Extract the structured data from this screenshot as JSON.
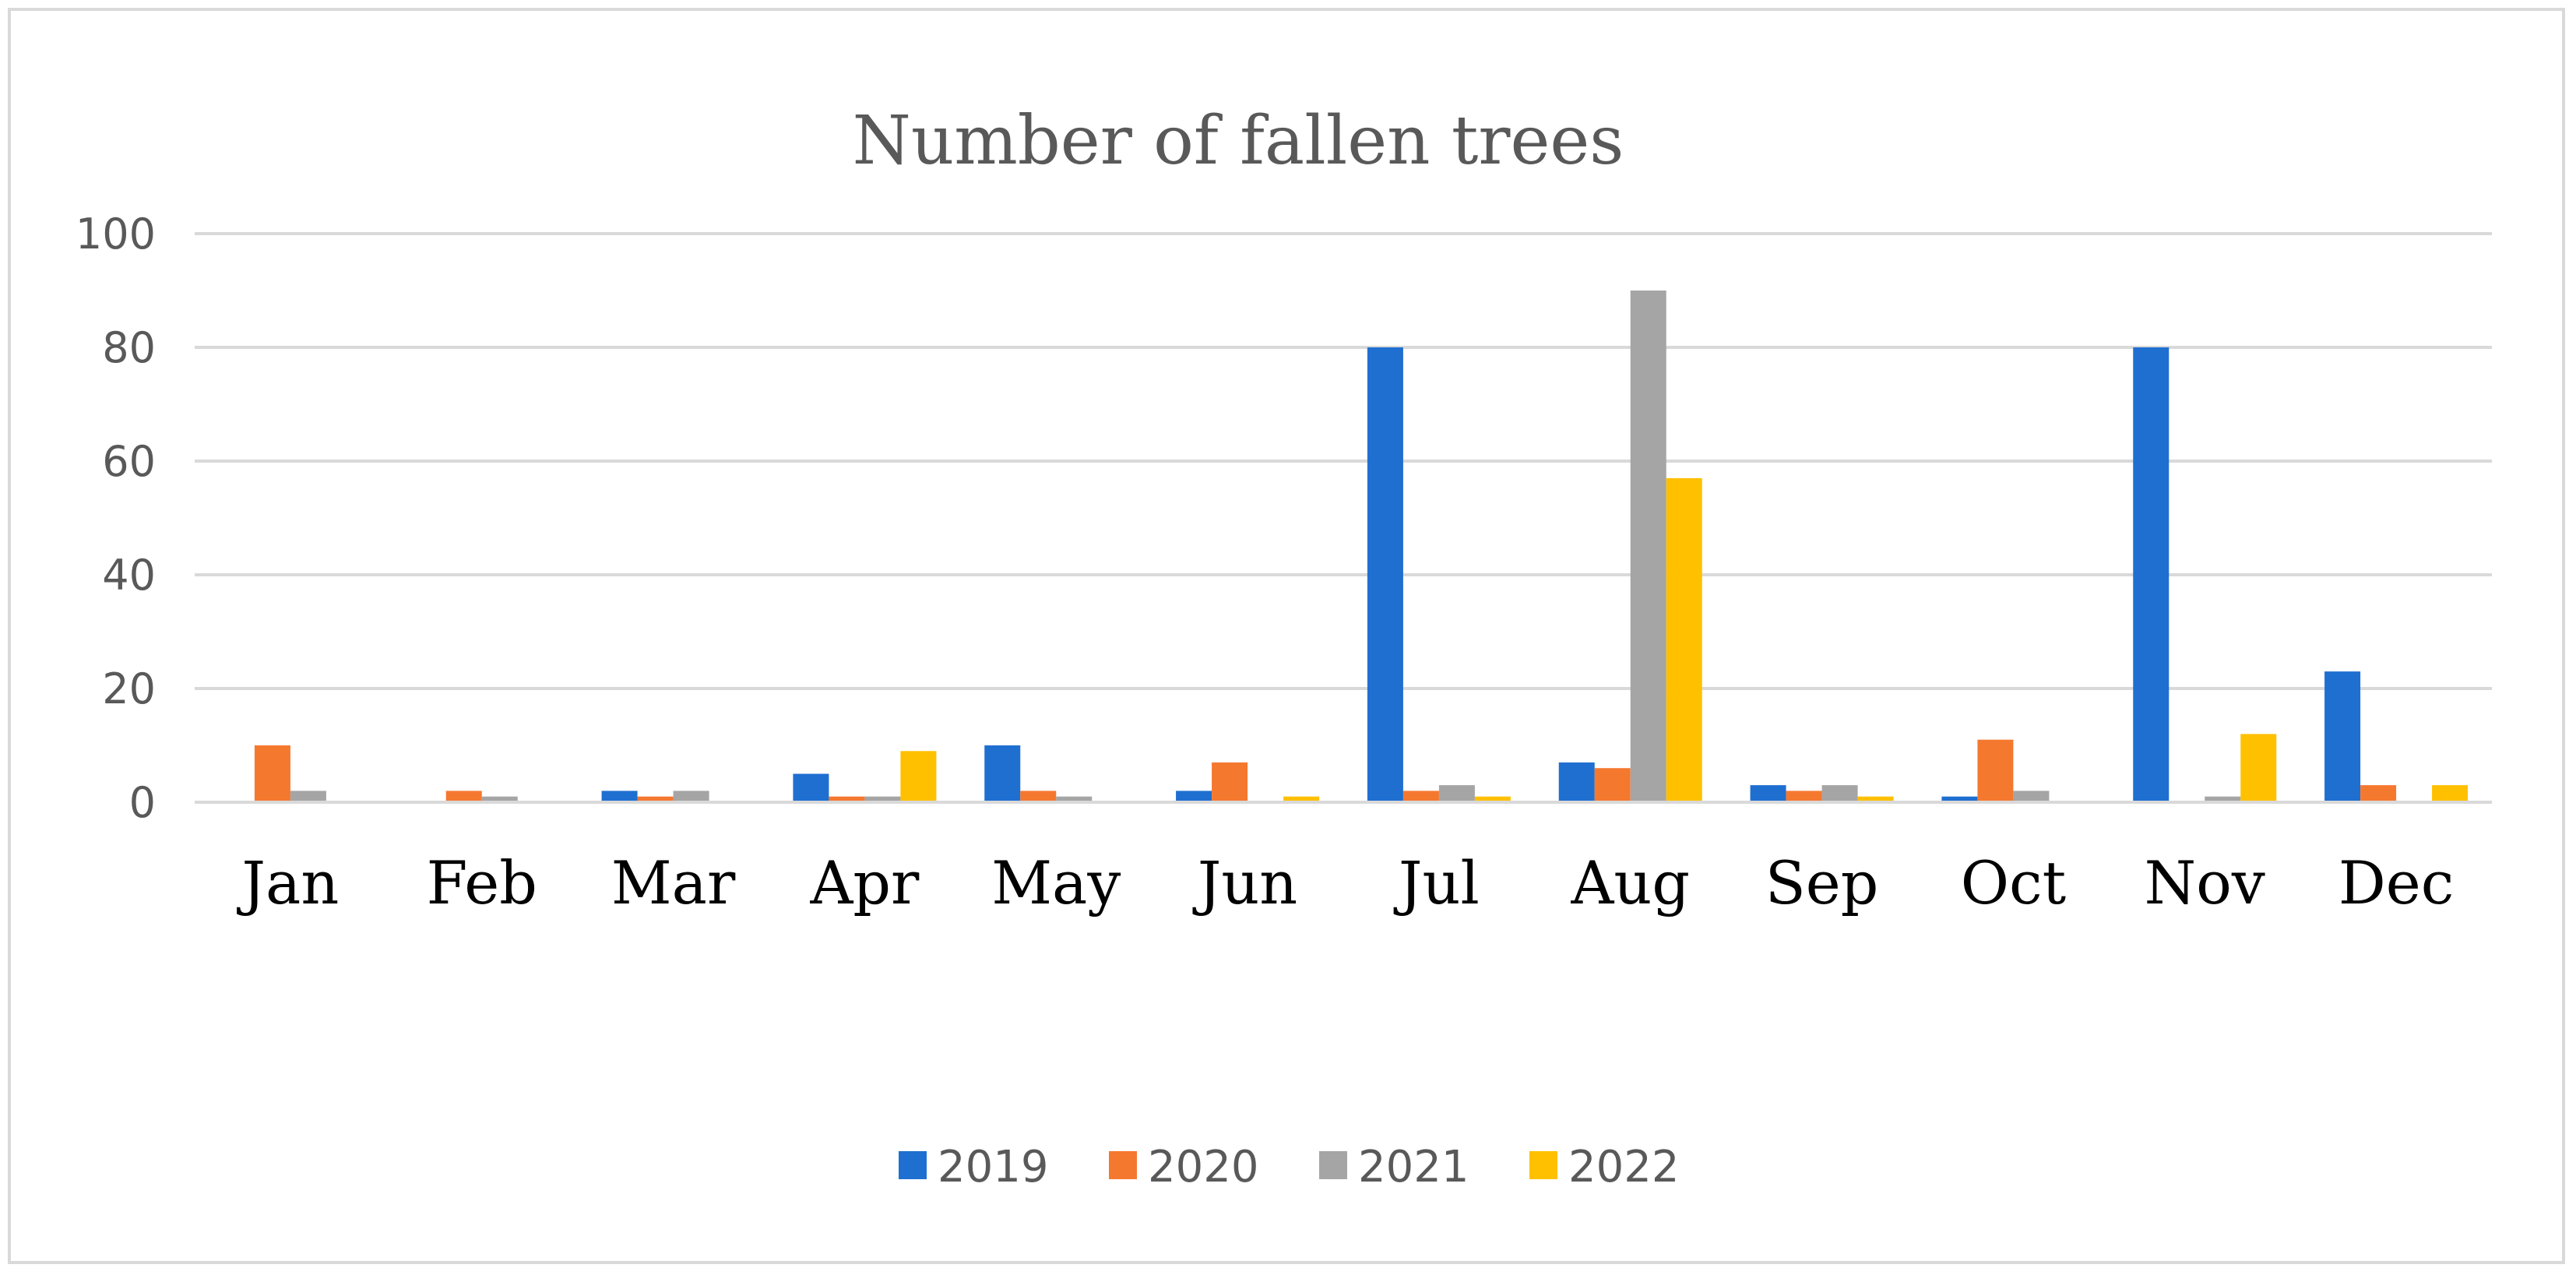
{
  "chart_data": {
    "type": "bar",
    "title": "Number of fallen trees",
    "xlabel": "",
    "ylabel": "",
    "ylim": [
      0,
      100
    ],
    "yticks": [
      0,
      20,
      40,
      60,
      80,
      100
    ],
    "grid": true,
    "legend_position": "bottom",
    "categories": [
      "Jan",
      "Feb",
      "Mar",
      "Apr",
      "May",
      "Jun",
      "Jul",
      "Aug",
      "Sep",
      "Oct",
      "Nov",
      "Dec"
    ],
    "series": [
      {
        "name": "2019",
        "color": "#1f6fd0",
        "values": [
          0,
          0,
          2,
          5,
          10,
          2,
          80,
          7,
          3,
          1,
          80,
          23
        ]
      },
      {
        "name": "2020",
        "color": "#f5782f",
        "values": [
          10,
          2,
          1,
          1,
          2,
          7,
          2,
          6,
          2,
          11,
          0,
          3
        ]
      },
      {
        "name": "2021",
        "color": "#a5a5a5",
        "values": [
          2,
          1,
          2,
          1,
          1,
          0,
          3,
          90,
          3,
          2,
          1,
          0
        ]
      },
      {
        "name": "2022",
        "color": "#ffc000",
        "values": [
          0,
          0,
          0,
          9,
          0,
          1,
          1,
          57,
          1,
          0,
          12,
          3
        ]
      }
    ]
  }
}
